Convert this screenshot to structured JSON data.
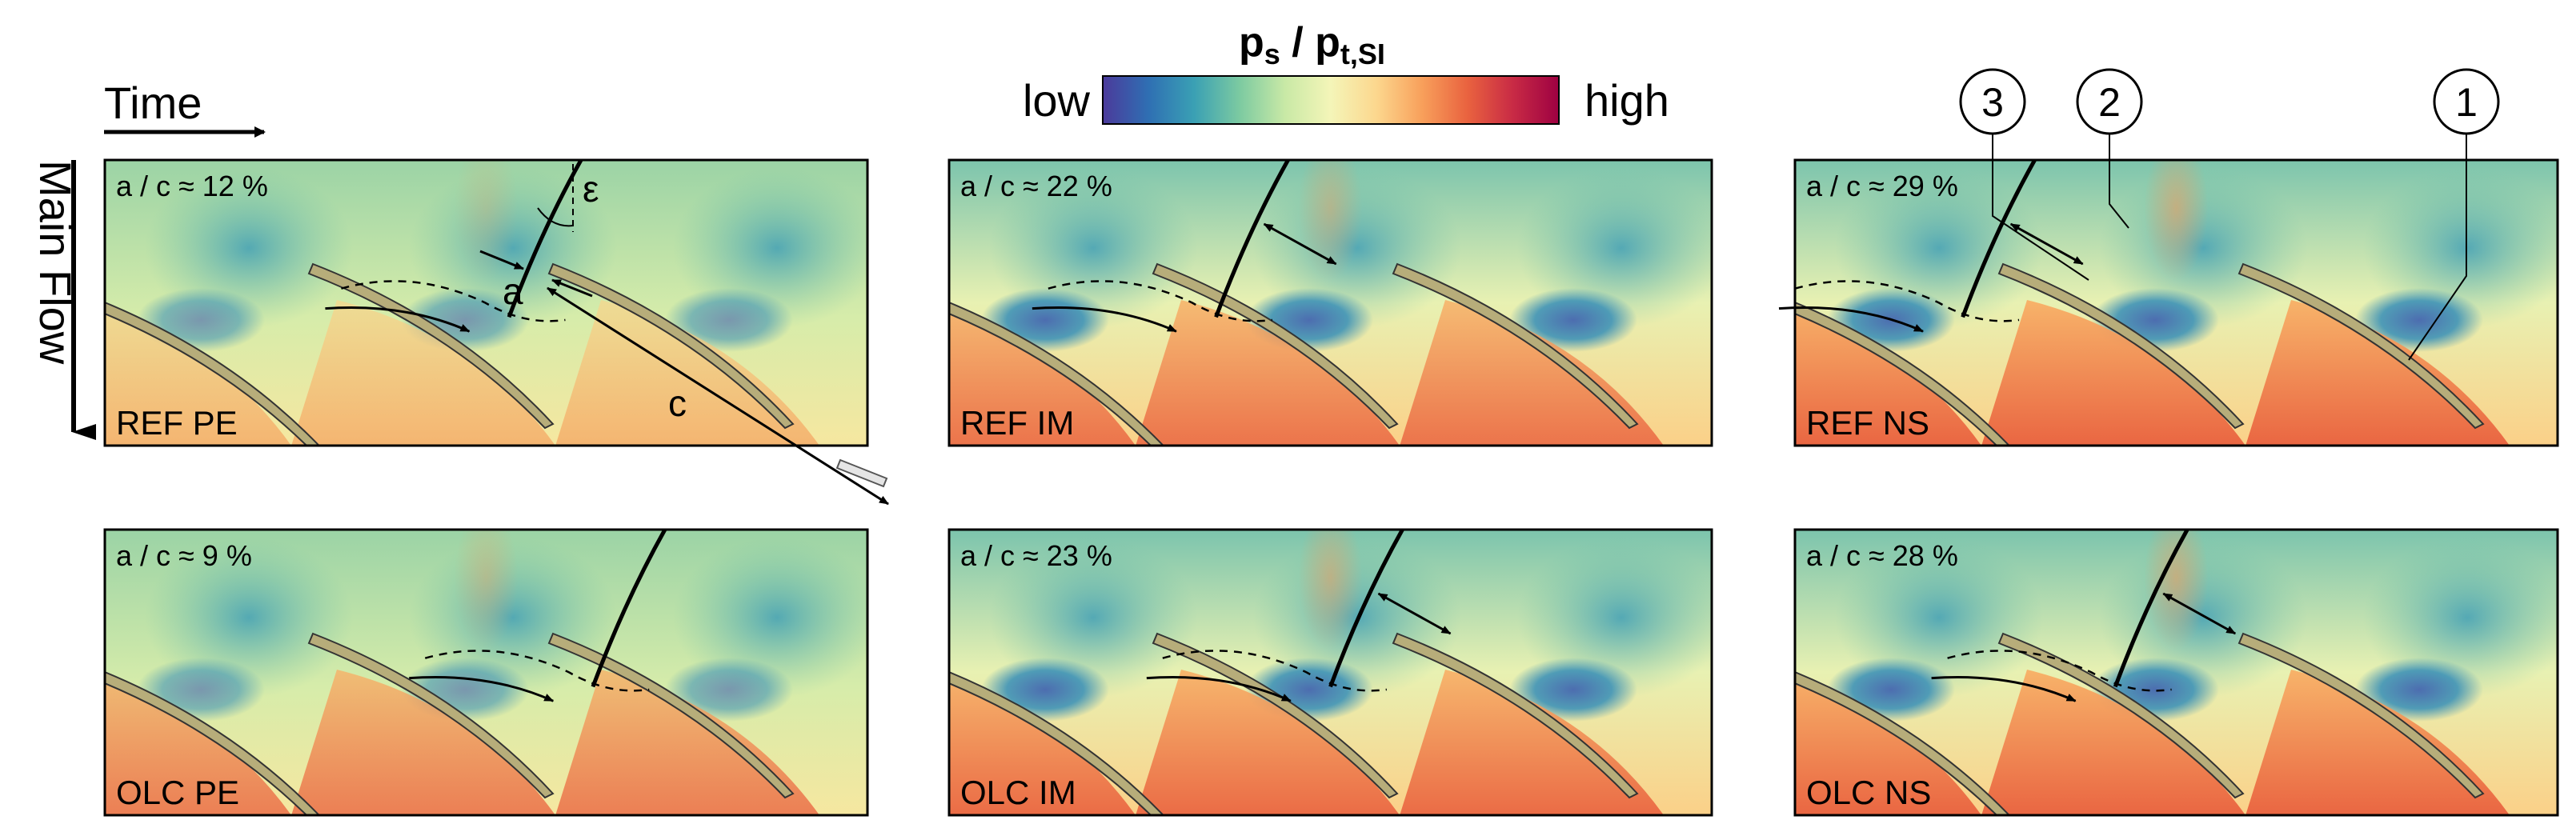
{
  "colorbar": {
    "title_main": "p",
    "title_sub": "s",
    "title_sep": " / ",
    "title_main2": "p",
    "title_sub2": "t,SI",
    "low_label": "low",
    "high_label": "high",
    "colors": [
      "#4b3a9b",
      "#2f6fb3",
      "#3aa0b4",
      "#7ccaa1",
      "#c9e9a6",
      "#f4f5b8",
      "#fcd78e",
      "#f8a05b",
      "#e9623f",
      "#c82a45",
      "#9e0142"
    ]
  },
  "axes": {
    "time_label": "Time",
    "flow_label": "Main Flow"
  },
  "callouts": [
    "3",
    "2",
    "1"
  ],
  "annotations": {
    "epsilon": "ε",
    "a_symbol": "a",
    "c_symbol": "c"
  },
  "panels": [
    {
      "id": "ref-pe",
      "label": "REF PE",
      "ratio": "a / c ≈ 12 %"
    },
    {
      "id": "ref-im",
      "label": "REF IM",
      "ratio": "a / c ≈ 22 %"
    },
    {
      "id": "ref-ns",
      "label": "REF NS",
      "ratio": "a / c ≈ 29 %"
    },
    {
      "id": "olc-pe",
      "label": "OLC PE",
      "ratio": "a / c ≈ 9 %"
    },
    {
      "id": "olc-im",
      "label": "OLC IM",
      "ratio": "a / c ≈ 23 %"
    },
    {
      "id": "olc-ns",
      "label": "OLC NS",
      "ratio": "a / c ≈ 28 %"
    }
  ]
}
